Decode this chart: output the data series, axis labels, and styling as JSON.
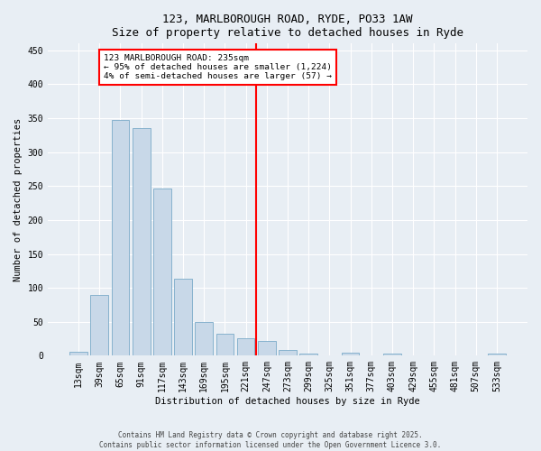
{
  "title": "123, MARLBOROUGH ROAD, RYDE, PO33 1AW",
  "subtitle": "Size of property relative to detached houses in Ryde",
  "xlabel": "Distribution of detached houses by size in Ryde",
  "ylabel": "Number of detached properties",
  "bar_color": "#c8d8e8",
  "bar_edge_color": "#7aaac8",
  "bin_labels": [
    "13sqm",
    "39sqm",
    "65sqm",
    "91sqm",
    "117sqm",
    "143sqm",
    "169sqm",
    "195sqm",
    "221sqm",
    "247sqm",
    "273sqm",
    "299sqm",
    "325sqm",
    "351sqm",
    "377sqm",
    "403sqm",
    "429sqm",
    "455sqm",
    "481sqm",
    "507sqm",
    "533sqm"
  ],
  "bar_values": [
    6,
    89,
    348,
    336,
    246,
    113,
    49,
    32,
    26,
    22,
    9,
    3,
    0,
    4,
    0,
    3,
    0,
    0,
    0,
    0,
    3
  ],
  "vline_color": "red",
  "vline_pos": 8.5,
  "annotation_title": "123 MARLBOROUGH ROAD: 235sqm",
  "annotation_line1": "← 95% of detached houses are smaller (1,224)",
  "annotation_line2": "4% of semi-detached houses are larger (57) →",
  "annotation_box_color": "white",
  "annotation_box_edge_color": "red",
  "ylim": [
    0,
    460
  ],
  "yticks": [
    0,
    50,
    100,
    150,
    200,
    250,
    300,
    350,
    400,
    450
  ],
  "background_color": "#e8eef4",
  "title_fontsize": 9,
  "subtitle_fontsize": 8,
  "axis_label_fontsize": 7.5,
  "tick_fontsize": 7,
  "annotation_fontsize": 6.8,
  "footer1": "Contains HM Land Registry data © Crown copyright and database right 2025.",
  "footer2": "Contains public sector information licensed under the Open Government Licence 3.0.",
  "footer_fontsize": 5.5
}
